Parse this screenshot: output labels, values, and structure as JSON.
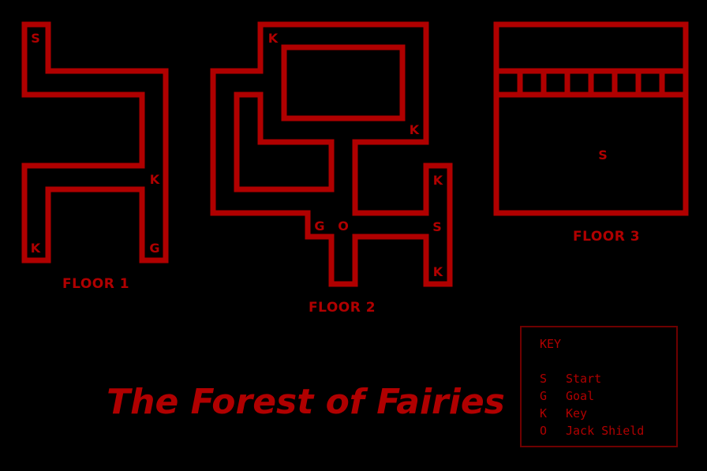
{
  "title": "The Forest of Fairies",
  "floors": [
    {
      "label": "FLOOR 1",
      "markers": [
        "S",
        "K",
        "K",
        "G"
      ]
    },
    {
      "label": "FLOOR 2",
      "markers": [
        "K",
        "K",
        "K",
        "S",
        "K",
        "G",
        "O"
      ]
    },
    {
      "label": "FLOOR 3",
      "markers": [
        "S"
      ]
    }
  ],
  "legend": {
    "heading": "KEY",
    "items": [
      {
        "symbol": "S",
        "meaning": "Start"
      },
      {
        "symbol": "G",
        "meaning": "Goal"
      },
      {
        "symbol": "K",
        "meaning": "Key"
      },
      {
        "symbol": "O",
        "meaning": "Jack Shield"
      }
    ]
  },
  "colors": {
    "wall": "#b00000",
    "background": "#000000",
    "legend_border": "#6e0000"
  }
}
